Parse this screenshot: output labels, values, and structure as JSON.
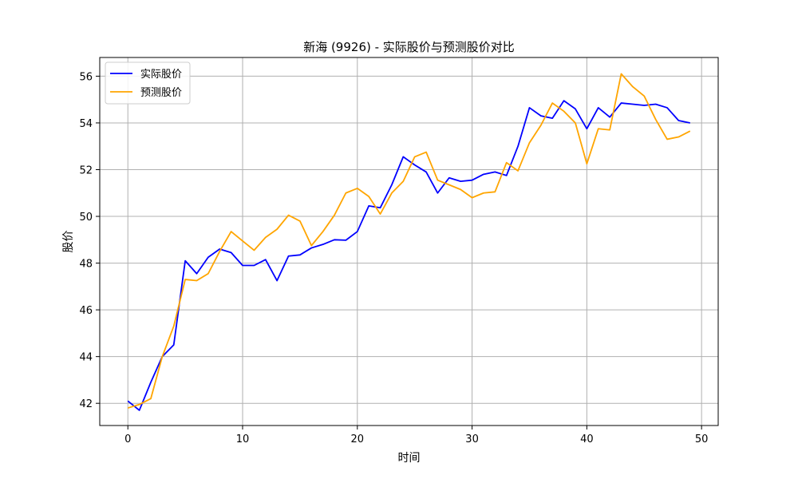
{
  "chart_data": {
    "type": "line",
    "title": "新海 (9926) - 实际股价与预测股价对比",
    "xlabel": "时间",
    "ylabel": "股价",
    "xlim": [
      -2.45,
      51.45
    ],
    "ylim": [
      41.05,
      56.8
    ],
    "xticks": [
      0,
      10,
      20,
      30,
      40,
      50
    ],
    "yticks": [
      42,
      44,
      46,
      48,
      50,
      52,
      54,
      56
    ],
    "grid": true,
    "legend_location": "top-left",
    "x": [
      0,
      1,
      2,
      3,
      4,
      5,
      6,
      7,
      8,
      9,
      10,
      11,
      12,
      13,
      14,
      15,
      16,
      17,
      18,
      19,
      20,
      21,
      22,
      23,
      24,
      25,
      26,
      27,
      28,
      29,
      30,
      31,
      32,
      33,
      34,
      35,
      36,
      37,
      38,
      39,
      40,
      41,
      42,
      43,
      44,
      45,
      46,
      47,
      48,
      49
    ],
    "series": [
      {
        "name": "实际股价",
        "color": "#0000ff",
        "values": [
          42.1,
          41.7,
          42.9,
          44.0,
          44.5,
          48.1,
          47.55,
          48.25,
          48.6,
          48.45,
          47.9,
          47.9,
          48.15,
          47.25,
          48.3,
          48.35,
          48.65,
          48.8,
          49.0,
          48.98,
          49.35,
          50.45,
          50.37,
          51.35,
          52.55,
          52.2,
          51.9,
          51.0,
          51.65,
          51.5,
          51.55,
          51.8,
          51.9,
          51.75,
          53.0,
          54.65,
          54.3,
          54.2,
          54.95,
          54.6,
          53.75,
          54.65,
          54.25,
          54.85,
          54.8,
          54.75,
          54.8,
          54.65,
          54.1,
          54.0
        ]
      },
      {
        "name": "预测股价",
        "color": "#ffa500",
        "values": [
          41.8,
          41.95,
          42.2,
          44.0,
          45.3,
          47.3,
          47.25,
          47.55,
          48.5,
          49.35,
          48.95,
          48.55,
          49.1,
          49.45,
          50.05,
          49.8,
          48.75,
          49.35,
          50.05,
          51.0,
          51.2,
          50.85,
          50.1,
          51.0,
          51.5,
          52.55,
          52.75,
          51.55,
          51.35,
          51.15,
          50.8,
          51.0,
          51.05,
          52.3,
          51.95,
          53.15,
          53.9,
          54.85,
          54.5,
          54.0,
          52.25,
          53.75,
          53.7,
          56.1,
          55.55,
          55.15,
          54.15,
          53.3,
          53.4,
          53.65
        ]
      }
    ]
  }
}
